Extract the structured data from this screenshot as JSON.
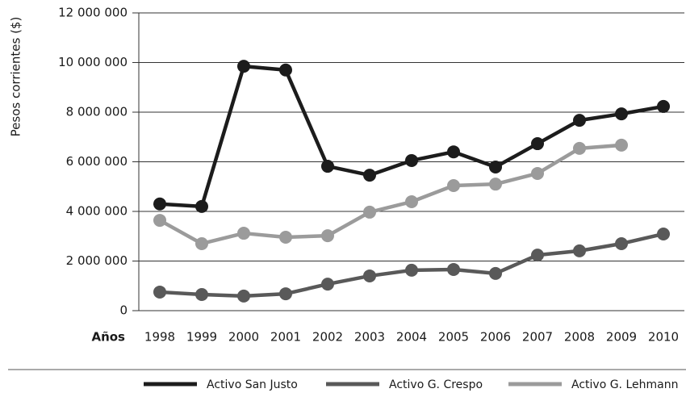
{
  "chart_data": {
    "type": "line",
    "y_label": "Pesos corrientes ($)",
    "x_label": "Años",
    "categories": [
      "1998",
      "1999",
      "2000",
      "2001",
      "2002",
      "2003",
      "2004",
      "2005",
      "2006",
      "2007",
      "2008",
      "2009",
      "2010"
    ],
    "series": [
      {
        "name": "Activo San Justo",
        "color": "#1c1c1c",
        "values": [
          4300000,
          4200000,
          9850000,
          9700000,
          5820000,
          5460000,
          6050000,
          6400000,
          5790000,
          6730000,
          7670000,
          7930000,
          8230000
        ]
      },
      {
        "name": "Activo G. Crespo",
        "color": "#595959",
        "values": [
          750000,
          650000,
          590000,
          680000,
          1070000,
          1400000,
          1630000,
          1660000,
          1500000,
          2240000,
          2410000,
          2700000,
          3090000
        ]
      },
      {
        "name": "Activo G. Lehmann",
        "color": "#9b9b9b",
        "values": [
          3640000,
          2700000,
          3120000,
          2960000,
          3020000,
          3970000,
          4390000,
          5040000,
          5100000,
          5530000,
          6540000,
          6670000,
          null
        ]
      }
    ],
    "ylim": [
      0,
      12000000
    ],
    "yticks": [
      0,
      {
        "value": 2000000,
        "label": "2 000 000"
      },
      {
        "value": 4000000,
        "label": "4 000 000"
      },
      {
        "value": 6000000,
        "label": "6 000 000"
      },
      {
        "value": 8000000,
        "label": "8 000 000"
      },
      {
        "value": 10000000,
        "label": "10 000 000"
      },
      {
        "value": 12000000,
        "label": "12 000 000"
      }
    ],
    "grid": true,
    "legend": "bottom"
  }
}
